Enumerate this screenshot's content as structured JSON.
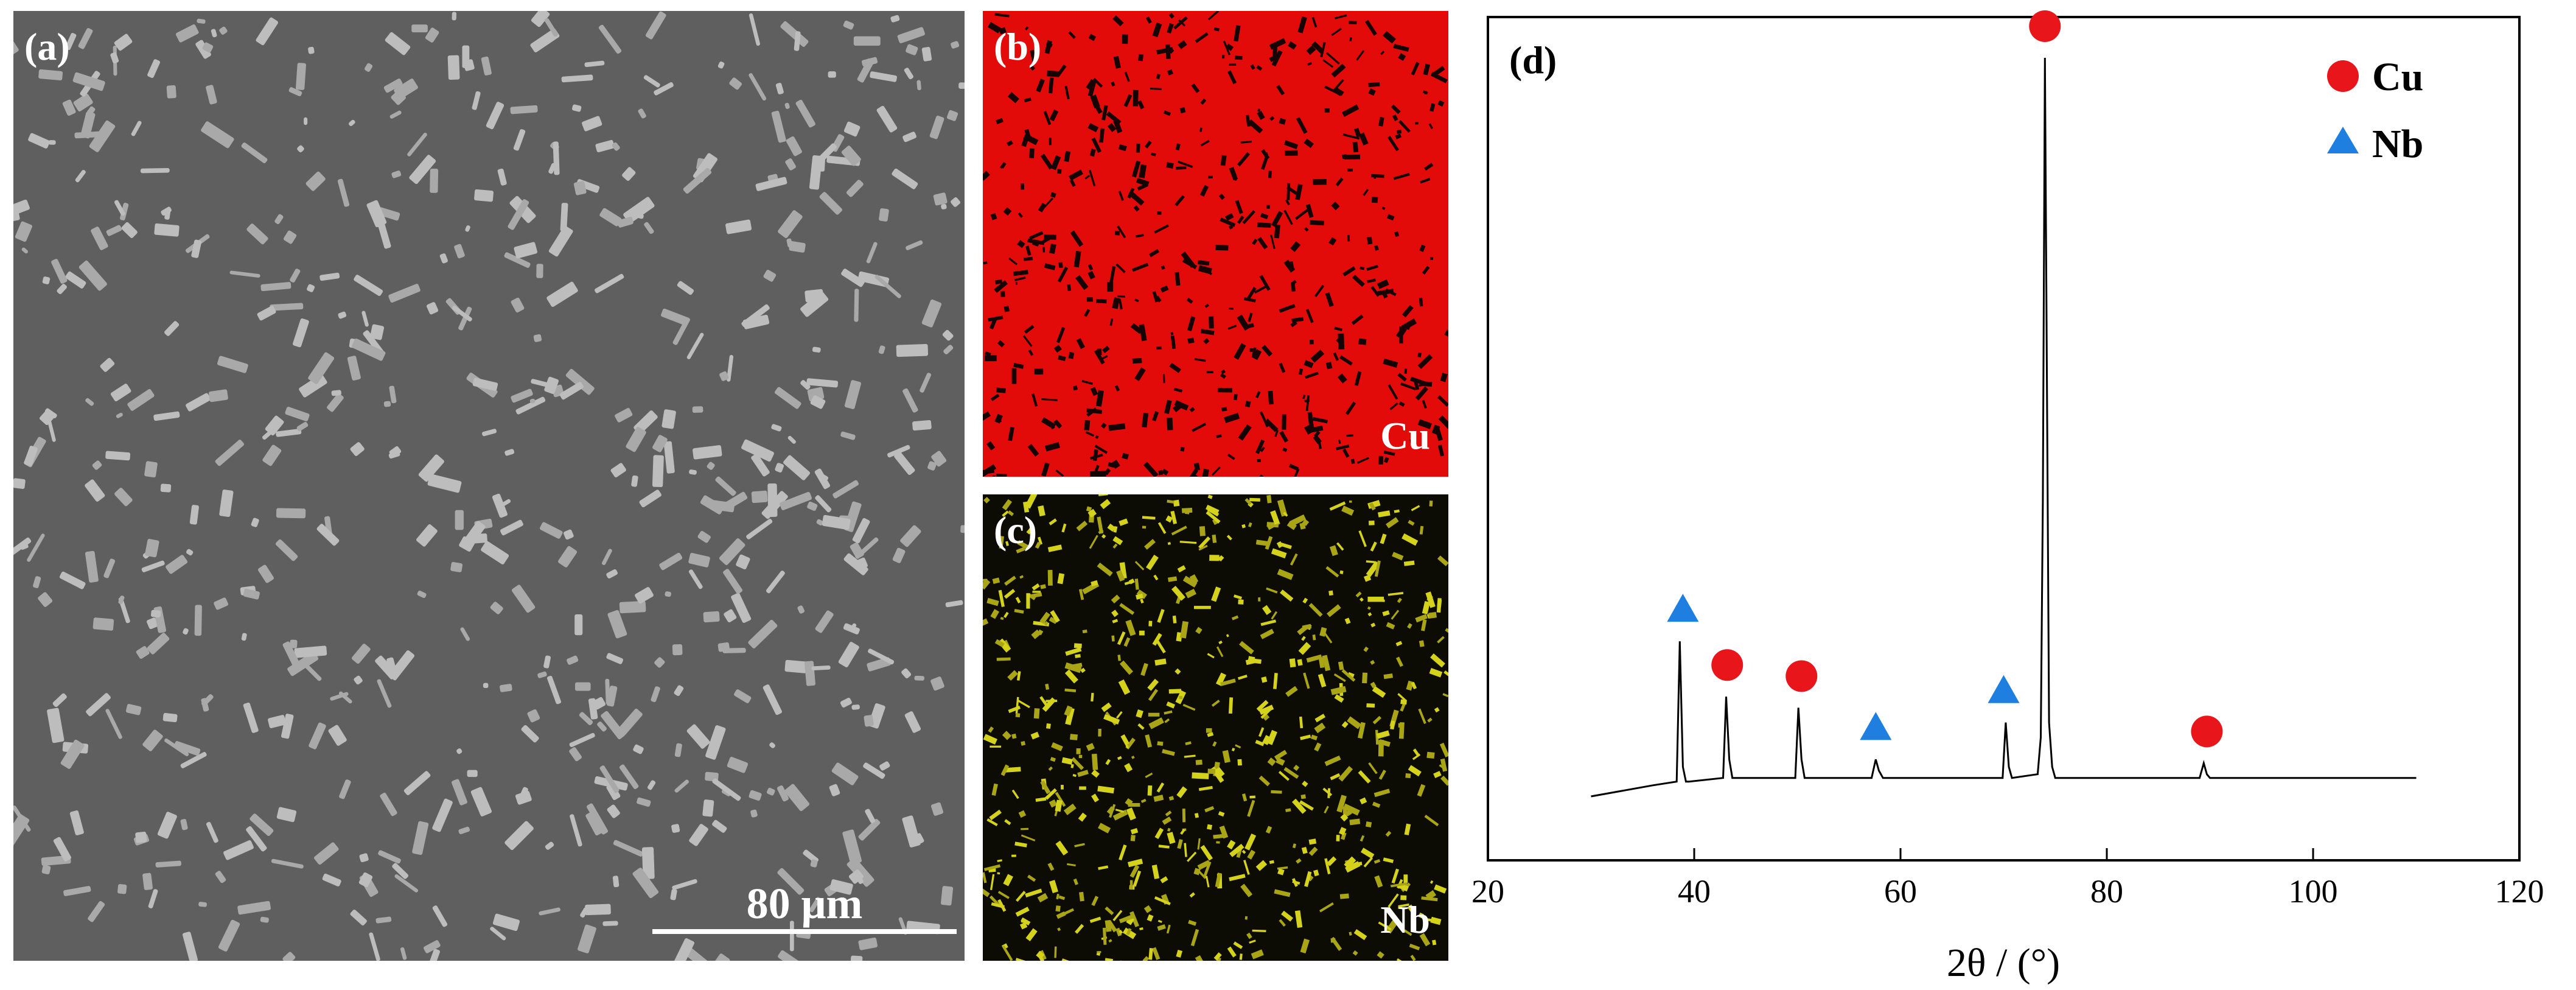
{
  "panels": {
    "a": {
      "label": "(a)",
      "scale_bar": "80 μm"
    },
    "b": {
      "label": "(b)",
      "element": "Cu"
    },
    "c": {
      "label": "(c)",
      "element": "Nb"
    },
    "d": {
      "label": "(d)"
    }
  },
  "colors": {
    "cu_marker": "#e8151b",
    "nb_marker": "#1f7fe0",
    "sem_matrix": "#5f5f5f",
    "sem_particle": "#b9b9b9",
    "cu_map": "#e30a0a",
    "nb_map": "#d4d21a"
  },
  "chart_data": {
    "type": "line",
    "xlabel": "2θ / (°)",
    "ylabel": "",
    "xlim": [
      20,
      120
    ],
    "xticks": [
      20,
      40,
      60,
      80,
      100,
      120
    ],
    "grid": false,
    "legend_position": "top-right",
    "legend": [
      {
        "name": "Cu",
        "marker": "circle"
      },
      {
        "name": "Nb",
        "marker": "triangle"
      }
    ],
    "series": [
      {
        "x": [
          30,
          36,
          38.3,
          38.6,
          38.9,
          39.2,
          39.5,
          42.8,
          43.1,
          43.4,
          43.7,
          44.0,
          49.8,
          50.1,
          50.4,
          50.7,
          51.0,
          57.2,
          57.6,
          57.9,
          58.3,
          69.9,
          70.2,
          70.5,
          70.8,
          73.3,
          73.6,
          73.8,
          74.0,
          74.2,
          74.4,
          74.7,
          75.0,
          89.0,
          89.4,
          89.7,
          90.0,
          100,
          110
        ],
        "y": [
          0.0,
          0.015,
          0.02,
          0.21,
          0.04,
          0.02,
          0.02,
          0.025,
          0.135,
          0.05,
          0.025,
          0.025,
          0.025,
          0.12,
          0.05,
          0.025,
          0.025,
          0.025,
          0.05,
          0.035,
          0.025,
          0.025,
          0.1,
          0.04,
          0.025,
          0.03,
          0.08,
          0.4,
          1.0,
          0.55,
          0.1,
          0.04,
          0.025,
          0.025,
          0.045,
          0.03,
          0.025,
          0.025,
          0.025
        ]
      }
    ],
    "phase_markers": [
      {
        "phase": "Nb",
        "x": 38.9
      },
      {
        "phase": "Cu",
        "x": 43.2
      },
      {
        "phase": "Cu",
        "x": 50.4
      },
      {
        "phase": "Nb",
        "x": 57.6
      },
      {
        "phase": "Nb",
        "x": 70.0
      },
      {
        "phase": "Cu",
        "x": 74.0
      },
      {
        "phase": "Cu",
        "x": 89.7
      }
    ]
  }
}
